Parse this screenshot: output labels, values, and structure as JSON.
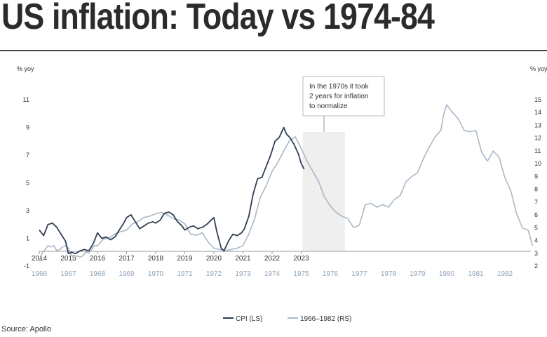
{
  "title": "US inflation: Today vs 1974-84",
  "source": "Source: Apollo",
  "chart_data": {
    "type": "line",
    "left_axis": {
      "label": "% yoy",
      "ticks": [
        11,
        9,
        7,
        5,
        3,
        1,
        -1
      ],
      "range": [
        -1,
        11
      ]
    },
    "right_axis": {
      "label": "% yoy",
      "ticks": [
        15,
        14,
        13,
        12,
        11,
        10,
        9,
        8,
        7,
        6,
        5,
        4,
        3,
        2
      ],
      "range": [
        2,
        15
      ]
    },
    "x_labels_top": [
      "2014",
      "2015",
      "2016",
      "2017",
      "2018",
      "2019",
      "2020",
      "2021",
      "2022",
      "2023"
    ],
    "x_labels_bottom": [
      "1966",
      "1967",
      "1968",
      "1969",
      "1970",
      "1971",
      "1972",
      "1973",
      "1974",
      "1975",
      "1976",
      "1977",
      "1978",
      "1979",
      "1980",
      "1981",
      "1982"
    ],
    "annotation": {
      "lines": [
        "In the 1970s it took",
        "2 years for inflation",
        "to normalize"
      ],
      "shaded_x": [
        1975.05,
        1976.5
      ]
    },
    "legend": {
      "placement": "bottom-center",
      "items": [
        "CPI (LS)",
        "1966–1982 (RS)"
      ]
    },
    "series": [
      {
        "name": "CPI (LS)",
        "axis": "left",
        "color": "#2f3e52",
        "x": [
          2014.0,
          2014.15,
          2014.3,
          2014.45,
          2014.6,
          2014.75,
          2014.9,
          2015.0,
          2015.1,
          2015.25,
          2015.4,
          2015.55,
          2015.7,
          2015.85,
          2016.0,
          2016.15,
          2016.3,
          2016.45,
          2016.6,
          2016.75,
          2016.9,
          2017.0,
          2017.15,
          2017.3,
          2017.45,
          2017.6,
          2017.75,
          2017.9,
          2018.0,
          2018.15,
          2018.3,
          2018.45,
          2018.6,
          2018.75,
          2018.9,
          2019.0,
          2019.15,
          2019.3,
          2019.45,
          2019.6,
          2019.75,
          2019.9,
          2020.0,
          2020.1,
          2020.25,
          2020.35,
          2020.5,
          2020.65,
          2020.8,
          2020.95,
          2021.05,
          2021.2,
          2021.35,
          2021.5,
          2021.65,
          2021.8,
          2021.95,
          2022.1,
          2022.25,
          2022.4,
          2022.5,
          2022.6,
          2022.75,
          2022.9,
          2023.0,
          2023.1
        ],
        "y": [
          1.6,
          1.2,
          2.0,
          2.1,
          1.8,
          1.3,
          0.8,
          -0.1,
          0.0,
          -0.1,
          0.1,
          0.2,
          0.1,
          0.6,
          1.4,
          1.0,
          1.1,
          0.9,
          1.1,
          1.6,
          2.1,
          2.5,
          2.7,
          2.2,
          1.7,
          1.9,
          2.1,
          2.2,
          2.1,
          2.3,
          2.8,
          2.9,
          2.7,
          2.2,
          1.9,
          1.6,
          1.8,
          1.9,
          1.7,
          1.8,
          2.0,
          2.3,
          2.5,
          1.5,
          0.3,
          0.1,
          0.8,
          1.3,
          1.2,
          1.4,
          1.7,
          2.6,
          4.2,
          5.3,
          5.4,
          6.2,
          7.0,
          8.0,
          8.3,
          9.0,
          8.5,
          8.3,
          7.8,
          7.1,
          6.4,
          6.0
        ]
      },
      {
        "name": "1966–1982 (RS)",
        "axis": "right",
        "color": "#a9b8c8",
        "x": [
          1966.0,
          1966.1,
          1966.2,
          1966.3,
          1966.4,
          1966.5,
          1966.6,
          1966.7,
          1966.8,
          1966.9,
          1967.0,
          1967.1,
          1967.2,
          1967.3,
          1967.4,
          1967.5,
          1967.6,
          1967.7,
          1967.8,
          1967.9,
          1968.0,
          1968.2,
          1968.4,
          1968.6,
          1968.8,
          1969.0,
          1969.2,
          1969.4,
          1969.6,
          1969.8,
          1970.0,
          1970.2,
          1970.4,
          1970.6,
          1970.8,
          1971.0,
          1971.2,
          1971.4,
          1971.6,
          1971.8,
          1972.0,
          1972.2,
          1972.4,
          1972.6,
          1972.8,
          1973.0,
          1973.2,
          1973.4,
          1973.6,
          1973.8,
          1974.0,
          1974.2,
          1974.4,
          1974.6,
          1974.8,
          1975.0,
          1975.2,
          1975.4,
          1975.6,
          1975.8,
          1976.0,
          1976.2,
          1976.4,
          1976.6,
          1976.8,
          1977.0,
          1977.2,
          1977.4,
          1977.6,
          1977.8,
          1978.0,
          1978.2,
          1978.4,
          1978.6,
          1978.8,
          1979.0,
          1979.2,
          1979.4,
          1979.6,
          1979.8,
          1979.9,
          1980.0,
          1980.1,
          1980.2,
          1980.4,
          1980.6,
          1980.8,
          1981.0,
          1981.2,
          1981.4,
          1981.6,
          1981.8,
          1982.0,
          1982.2,
          1982.4,
          1982.6,
          1982.8,
          1982.95
        ],
        "y": [
          2.4,
          3.0,
          3.3,
          3.6,
          3.5,
          3.6,
          3.2,
          3.3,
          3.5,
          3.6,
          3.4,
          2.9,
          2.6,
          2.8,
          2.7,
          2.8,
          3.1,
          3.0,
          3.3,
          3.6,
          3.6,
          4.1,
          4.2,
          4.5,
          4.7,
          4.8,
          5.3,
          5.5,
          5.8,
          5.9,
          6.1,
          6.2,
          6.0,
          5.7,
          5.6,
          5.3,
          4.5,
          4.4,
          4.6,
          3.9,
          3.4,
          3.3,
          3.2,
          3.3,
          3.4,
          3.6,
          4.5,
          5.7,
          7.4,
          8.3,
          9.4,
          10.1,
          11.0,
          11.8,
          12.1,
          11.2,
          10.2,
          9.4,
          8.6,
          7.4,
          6.7,
          6.2,
          5.9,
          5.7,
          5.0,
          5.2,
          6.8,
          6.9,
          6.6,
          6.8,
          6.6,
          7.2,
          7.5,
          8.6,
          9.0,
          9.3,
          10.4,
          11.3,
          12.1,
          12.6,
          13.9,
          14.6,
          14.3,
          14.0,
          13.5,
          12.6,
          12.5,
          12.6,
          10.9,
          10.2,
          11.0,
          10.5,
          8.9,
          7.9,
          6.1,
          5.0,
          4.8,
          3.6
        ]
      }
    ]
  }
}
